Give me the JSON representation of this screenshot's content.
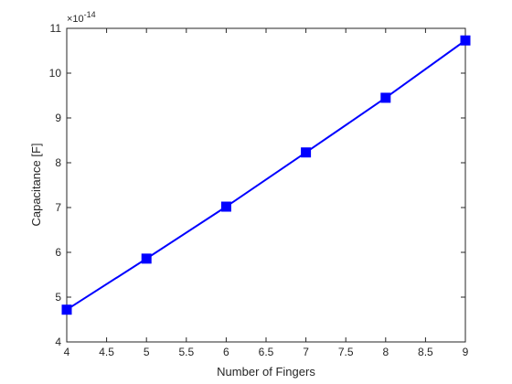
{
  "chart_data": {
    "type": "line",
    "title": "",
    "xlabel": "Number of Fingers",
    "ylabel": "Capacitance [F]",
    "xlim": [
      4,
      9
    ],
    "ylim": [
      4,
      11
    ],
    "y_multiplier": "×10",
    "y_multiplier_exponent": "-14",
    "x_ticks": [
      "4",
      "4.5",
      "5",
      "5.5",
      "6",
      "6.5",
      "7",
      "7.5",
      "8",
      "8.5",
      "9"
    ],
    "y_ticks": [
      "4",
      "5",
      "6",
      "7",
      "8",
      "9",
      "10",
      "11"
    ],
    "grid": false,
    "series": [
      {
        "x": [
          4,
          5,
          6,
          7,
          8,
          9
        ],
        "y": [
          4.72,
          5.86,
          7.02,
          8.23,
          9.45,
          10.73
        ],
        "color": "#0000ff",
        "marker": "square"
      }
    ]
  }
}
